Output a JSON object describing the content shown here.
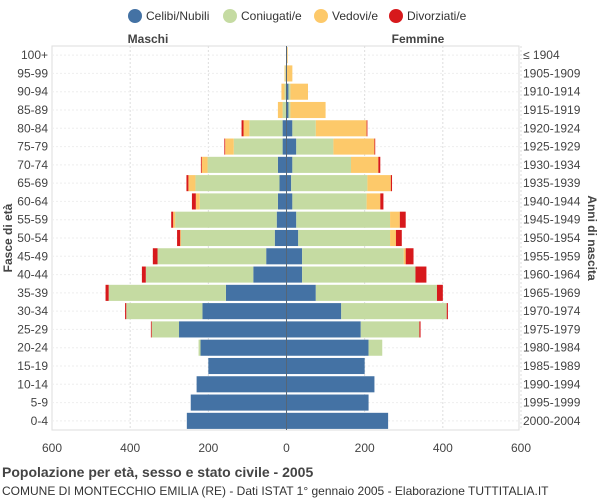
{
  "chart_data": {
    "type": "bar",
    "orientation": "horizontal-population-pyramid",
    "left_header": "Maschi",
    "right_header": "Femmine",
    "ylabel_left": "Fasce di età",
    "ylabel_right": "Anni di nascita",
    "x_ticks": [
      "600",
      "400",
      "200",
      "0",
      "200",
      "400",
      "600"
    ],
    "xlim": [
      -600,
      600
    ],
    "age_groups": [
      "100+",
      "95-99",
      "90-94",
      "85-89",
      "80-84",
      "75-79",
      "70-74",
      "65-69",
      "60-64",
      "55-59",
      "50-54",
      "45-49",
      "40-44",
      "35-39",
      "30-34",
      "25-29",
      "20-24",
      "15-19",
      "10-14",
      "5-9",
      "0-4"
    ],
    "birth_years": [
      "≤ 1904",
      "1905-1909",
      "1910-1914",
      "1915-1919",
      "1920-1924",
      "1925-1929",
      "1930-1934",
      "1935-1939",
      "1940-1944",
      "1945-1949",
      "1950-1954",
      "1955-1959",
      "1960-1964",
      "1965-1969",
      "1970-1974",
      "1975-1979",
      "1980-1984",
      "1985-1989",
      "1990-1994",
      "1995-1999",
      "2000-2004"
    ],
    "series": [
      {
        "name": "Celibi/Nubili",
        "color": "#4472a4",
        "male": [
          0,
          0,
          0,
          0,
          10,
          10,
          22,
          18,
          22,
          25,
          30,
          52,
          85,
          155,
          215,
          275,
          220,
          200,
          230,
          245,
          255
        ],
        "female": [
          0,
          0,
          5,
          5,
          15,
          25,
          15,
          12,
          15,
          25,
          30,
          40,
          40,
          75,
          140,
          190,
          210,
          200,
          225,
          210,
          260
        ]
      },
      {
        "name": "Coniugati/e",
        "color": "#c5dba2",
        "male": [
          0,
          3,
          5,
          10,
          85,
          125,
          180,
          215,
          200,
          260,
          240,
          278,
          275,
          300,
          195,
          70,
          5,
          0,
          0,
          0,
          0
        ],
        "female": [
          0,
          0,
          5,
          5,
          60,
          95,
          150,
          195,
          190,
          240,
          235,
          260,
          290,
          310,
          270,
          150,
          35,
          0,
          0,
          0,
          0
        ]
      },
      {
        "name": "Vedovi/e",
        "color": "#fdc96a",
        "male": [
          0,
          2,
          8,
          12,
          15,
          22,
          15,
          18,
          10,
          5,
          2,
          0,
          0,
          0,
          0,
          0,
          0,
          0,
          0,
          0,
          0
        ],
        "female": [
          3,
          15,
          45,
          90,
          130,
          105,
          70,
          60,
          35,
          25,
          15,
          5,
          0,
          0,
          0,
          0,
          0,
          0,
          0,
          0,
          0
        ]
      },
      {
        "name": "Divorziati/e",
        "color": "#d7191c",
        "male": [
          0,
          0,
          0,
          0,
          5,
          2,
          2,
          5,
          10,
          5,
          8,
          12,
          10,
          8,
          3,
          2,
          0,
          0,
          0,
          0,
          0
        ],
        "female": [
          0,
          0,
          0,
          0,
          2,
          2,
          5,
          3,
          8,
          15,
          15,
          20,
          28,
          15,
          3,
          3,
          0,
          0,
          0,
          0,
          0
        ]
      }
    ]
  },
  "footer": {
    "title": "Popolazione per età, sesso e stato civile - 2005",
    "subtitle": "COMUNE DI MONTECCHIO EMILIA (RE) - Dati ISTAT 1° gennaio 2005 - Elaborazione TUTTITALIA.IT"
  }
}
